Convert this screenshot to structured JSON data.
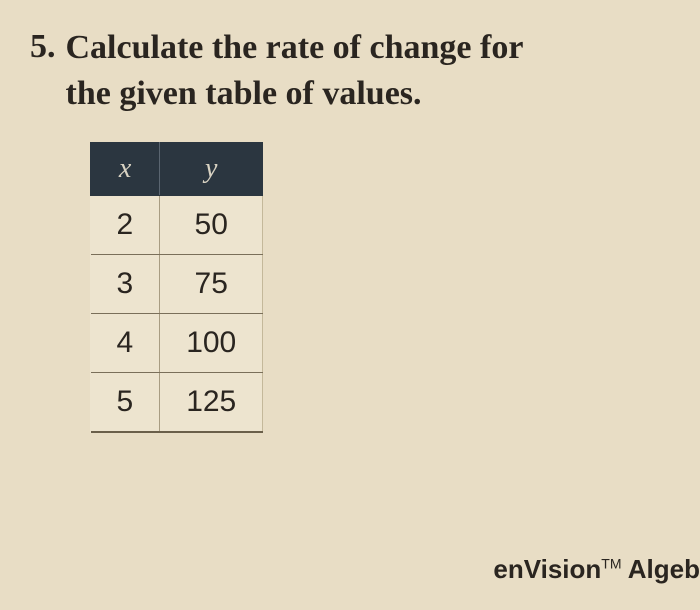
{
  "question": {
    "number": "5.",
    "text_line1": "Calculate the rate of change for",
    "text_line2": "the given table of values."
  },
  "table": {
    "type": "table",
    "columns": [
      "x",
      "y"
    ],
    "rows": [
      [
        "2",
        "50"
      ],
      [
        "3",
        "75"
      ],
      [
        "4",
        "100"
      ],
      [
        "5",
        "125"
      ]
    ],
    "header_bg_color": "#2b3640",
    "header_text_color": "#d8d2c2",
    "cell_bg_color": "#ede4cf",
    "cell_text_color": "#2a2520",
    "border_color": "#7a6f5a",
    "header_fontsize": 28,
    "cell_fontsize": 30
  },
  "footer": {
    "brand": "enVision",
    "trademark": "TM",
    "suffix": " Algeb"
  },
  "page_style": {
    "background_color": "#e8ddc5",
    "outer_background": "#c4b89a",
    "text_color": "#2a2520",
    "question_fontsize": 34
  }
}
